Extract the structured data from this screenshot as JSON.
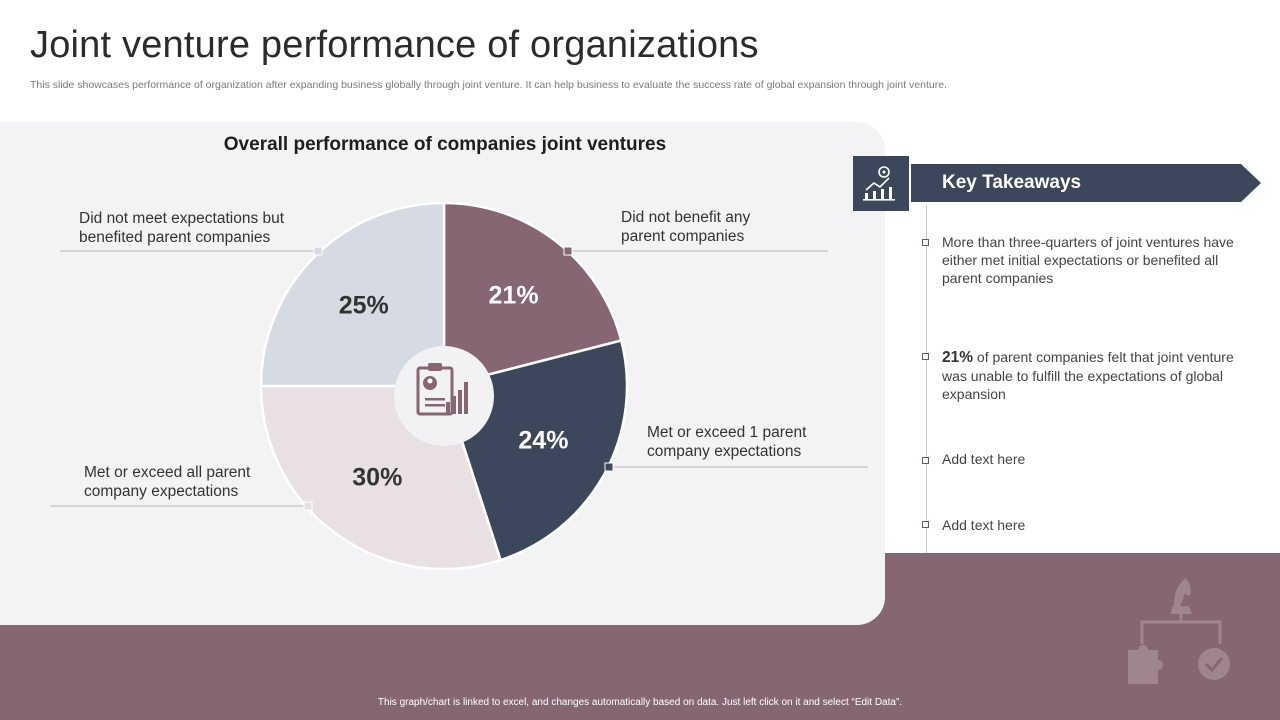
{
  "title": "Joint venture performance of organizations",
  "subtitle": "This slide showcases performance of organization after expanding business globally through joint venture. It can help business to evaluate the success rate of global expansion through joint venture.",
  "footer_note": "This graph/chart is linked to excel, and changes automatically based on data. Just left click on it and select “Edit Data”.",
  "chart_data": {
    "type": "pie",
    "title": "Overall performance of companies joint ventures",
    "categories": [
      "Did not benefit any parent companies",
      "Met or exceed 1 parent company expectations",
      "Met or exceed all parent company expectations",
      "Did not meet expectations but benefited parent companies"
    ],
    "values": [
      21,
      24,
      30,
      25
    ],
    "value_labels": [
      "21%",
      "24%",
      "30%",
      "25%"
    ],
    "label_lines": [
      [
        "Did not benefit any",
        "parent companies"
      ],
      [
        "Met or exceed 1 parent",
        "company expectations"
      ],
      [
        "Met or exceed all parent",
        "company expectations"
      ],
      [
        "Did not meet expectations but",
        "benefited parent companies"
      ]
    ],
    "colors": [
      "#876674",
      "#3d475c",
      "#e8e0e3",
      "#d5dae3"
    ],
    "label_colors": [
      "#ffffff",
      "#ffffff",
      "#333333",
      "#333333"
    ],
    "legend": "callouts"
  },
  "takeaways": {
    "header": "Key Takeaways",
    "item1": "More than three-quarters of joint ventures have either met initial expectations or benefited all parent companies",
    "item2_highlight": "21%",
    "item2_rest": " of parent companies felt that joint venture was unable to fulfill the expectations of global expansion",
    "item3": "Add text here",
    "item4": "Add text here"
  },
  "colors": {
    "accent": "#876674",
    "navy": "#3d475c"
  }
}
